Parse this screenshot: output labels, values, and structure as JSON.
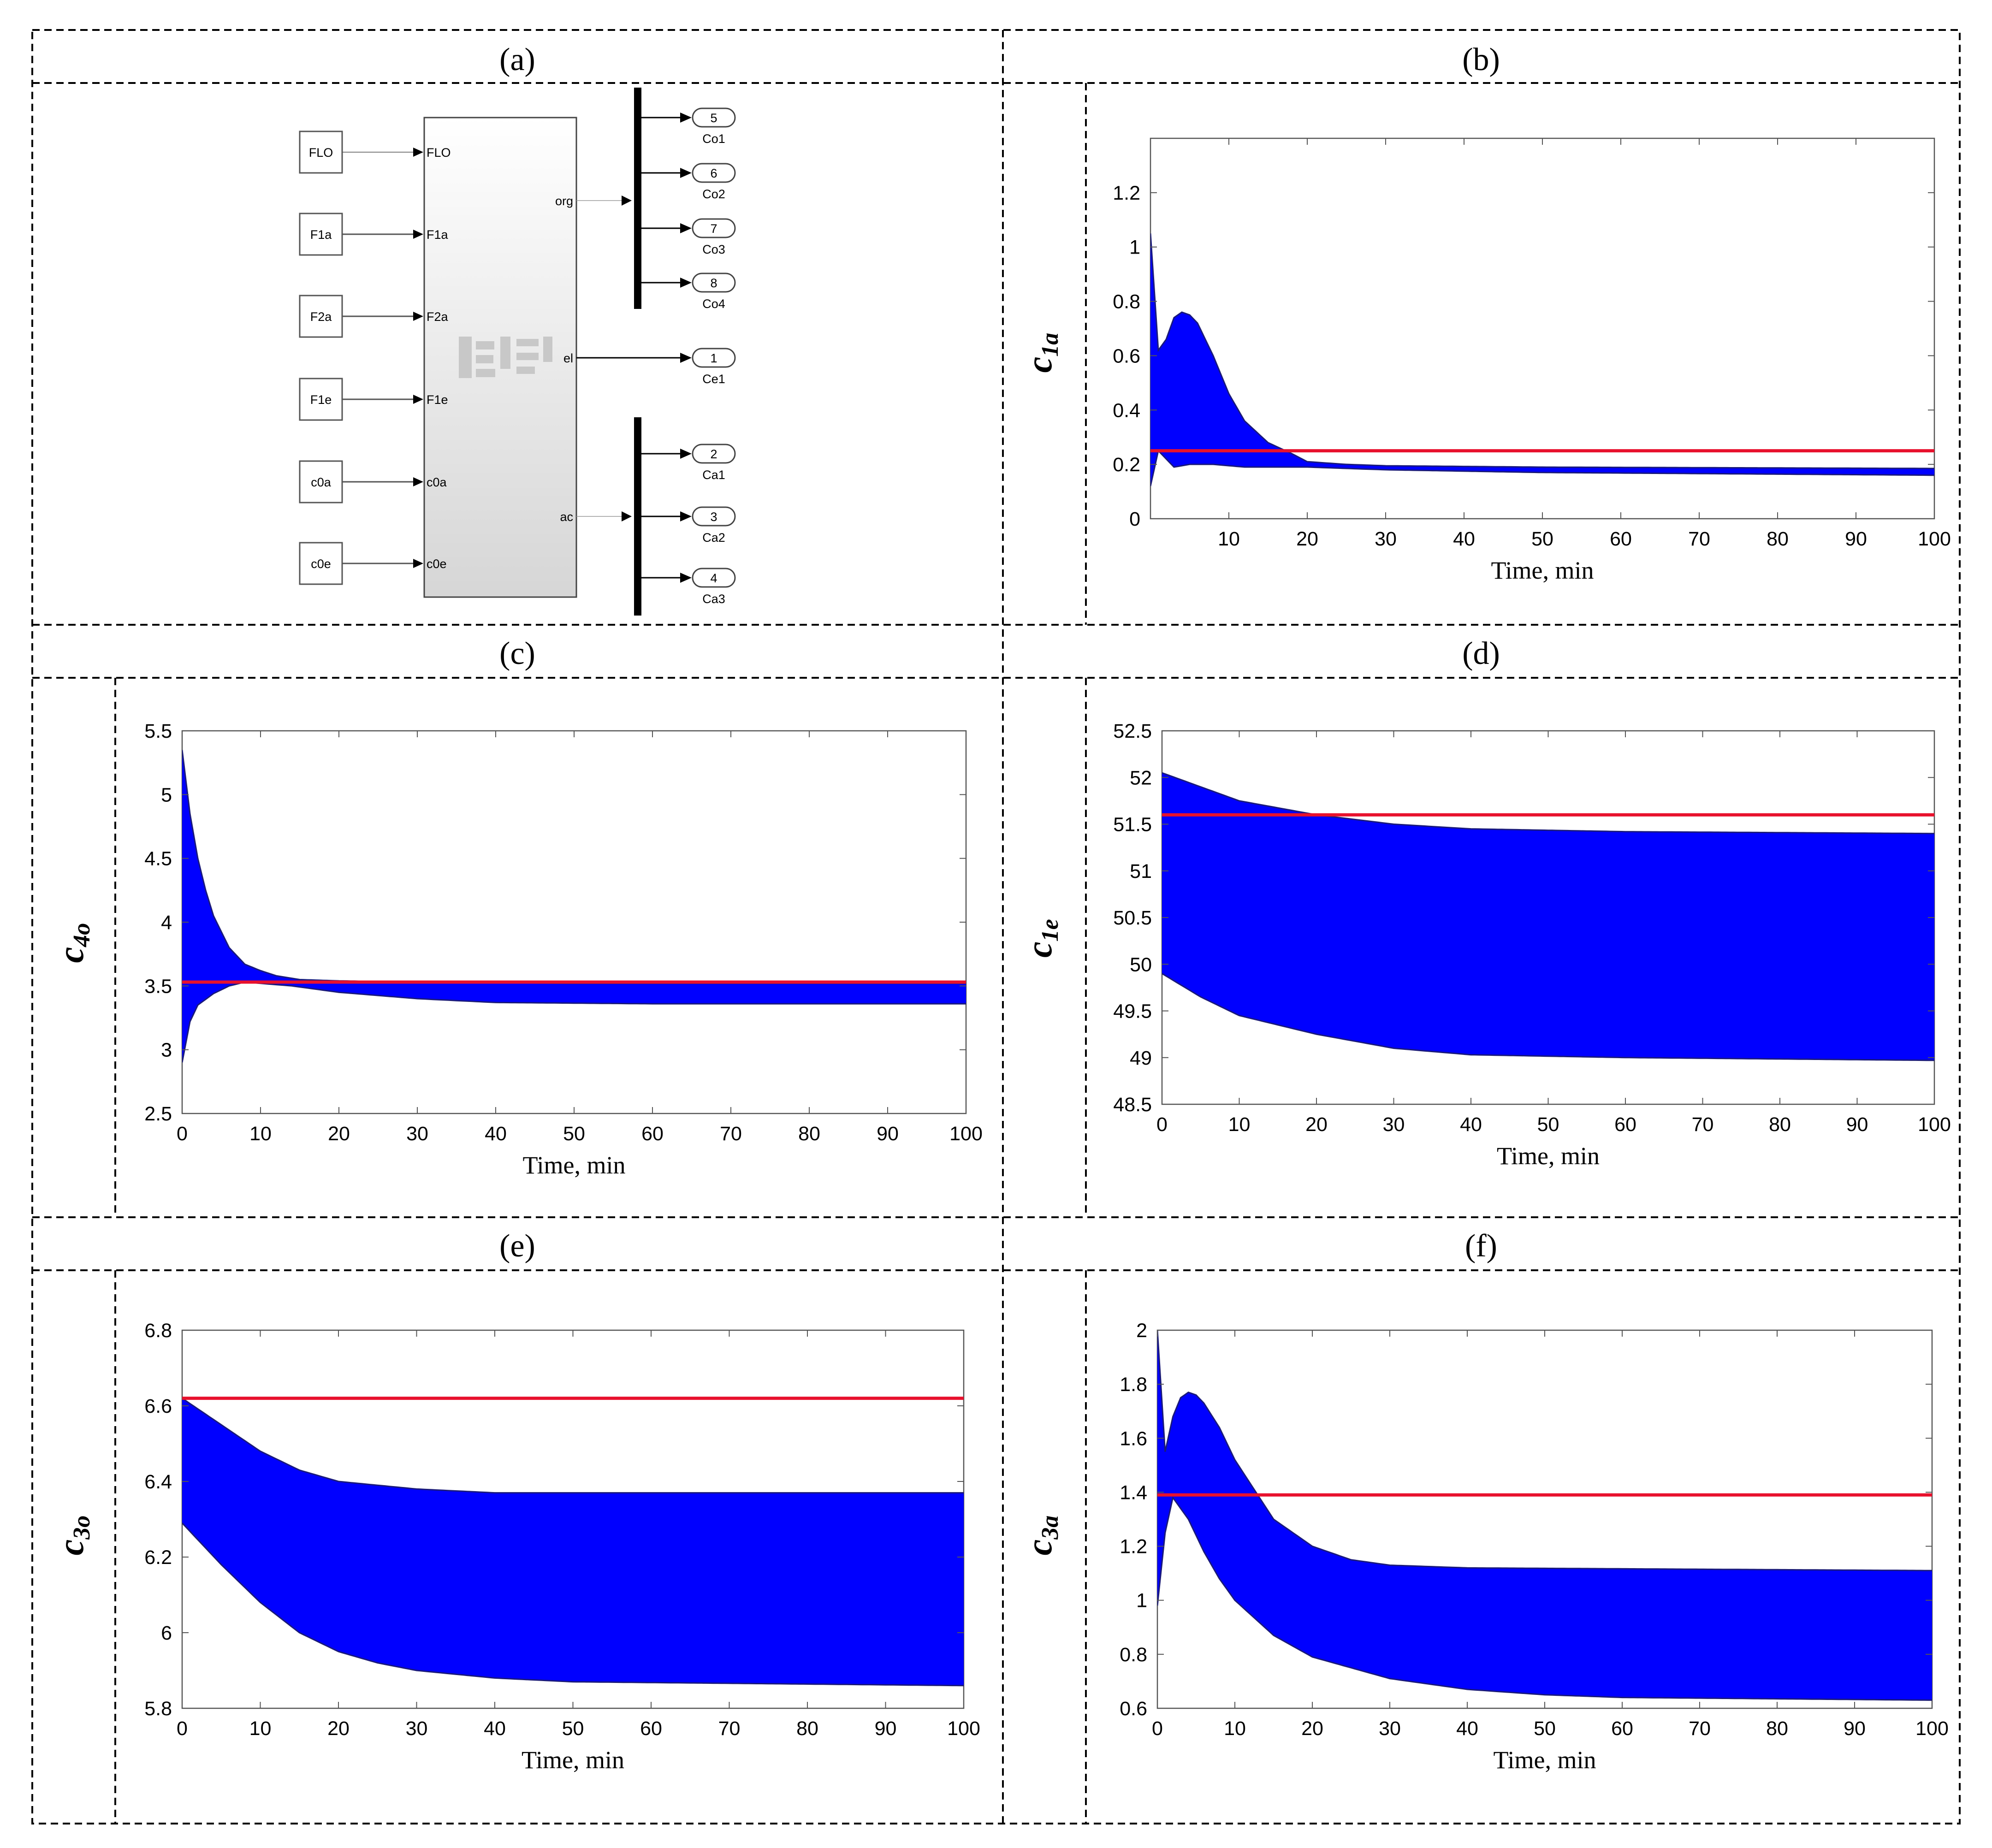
{
  "panels": {
    "a": {
      "label": "(a)"
    },
    "b": {
      "label": "(b)"
    },
    "c": {
      "label": "(c)"
    },
    "d": {
      "label": "(d)"
    },
    "e": {
      "label": "(e)"
    },
    "f": {
      "label": "(f)"
    }
  },
  "simulink": {
    "inputs": [
      "FLO",
      "F1a",
      "F2a",
      "F1e",
      "c0a",
      "c0e"
    ],
    "main_block_ports_in": [
      "FLO",
      "F1a",
      "F2a",
      "F1e",
      "c0a",
      "c0e"
    ],
    "main_block_ports_out": [
      "org",
      "el",
      "ac"
    ],
    "org_outputs": [
      {
        "num": "5",
        "name": "Co1"
      },
      {
        "num": "6",
        "name": "Co2"
      },
      {
        "num": "7",
        "name": "Co3"
      },
      {
        "num": "8",
        "name": "Co4"
      }
    ],
    "el_outputs": [
      {
        "num": "1",
        "name": "Ce1"
      }
    ],
    "ac_outputs": [
      {
        "num": "2",
        "name": "Ca1"
      },
      {
        "num": "3",
        "name": "Ca2"
      },
      {
        "num": "4",
        "name": "Ca3"
      }
    ]
  },
  "colors": {
    "ensemble": "#0000ff",
    "ensemble_edge": "#1a1a7a",
    "reference": "#e8112d"
  },
  "chart_data": [
    {
      "id": "b",
      "type": "line",
      "title": "",
      "xlabel": "Time, min",
      "ylabel": "c",
      "ylabel_sub": "1a",
      "xlim": [
        0,
        100
      ],
      "ylim": [
        0,
        1.4
      ],
      "xticks": [
        10,
        20,
        30,
        40,
        50,
        60,
        70,
        80,
        90,
        100
      ],
      "yticks": [
        0,
        0.2,
        0.4,
        0.6,
        0.8,
        1,
        1.2
      ],
      "xtick_labels": [
        "10",
        "20",
        "30",
        "40",
        "50",
        "60",
        "70",
        "80",
        "90",
        "100"
      ],
      "ytick_labels": [
        "0",
        "0.2",
        "0.4",
        "0.6",
        "0.8",
        "1",
        "1.2"
      ],
      "reference_value": 0.25,
      "band_upper": [
        [
          0,
          1.05
        ],
        [
          1,
          0.62
        ],
        [
          2,
          0.66
        ],
        [
          3,
          0.74
        ],
        [
          4,
          0.76
        ],
        [
          5,
          0.75
        ],
        [
          6,
          0.72
        ],
        [
          8,
          0.6
        ],
        [
          10,
          0.46
        ],
        [
          12,
          0.36
        ],
        [
          15,
          0.28
        ],
        [
          18,
          0.24
        ],
        [
          20,
          0.21
        ],
        [
          25,
          0.2
        ],
        [
          30,
          0.195
        ],
        [
          50,
          0.19
        ],
        [
          100,
          0.185
        ]
      ],
      "band_lower": [
        [
          0,
          0.12
        ],
        [
          1,
          0.25
        ],
        [
          2,
          0.22
        ],
        [
          3,
          0.19
        ],
        [
          5,
          0.2
        ],
        [
          8,
          0.2
        ],
        [
          12,
          0.19
        ],
        [
          20,
          0.19
        ],
        [
          30,
          0.18
        ],
        [
          50,
          0.17
        ],
        [
          100,
          0.16
        ]
      ]
    },
    {
      "id": "c",
      "type": "line",
      "title": "",
      "xlabel": "Time, min",
      "ylabel": "c",
      "ylabel_sub": "4o",
      "xlim": [
        0,
        100
      ],
      "ylim": [
        2.5,
        5.5
      ],
      "xticks": [
        0,
        10,
        20,
        30,
        40,
        50,
        60,
        70,
        80,
        90,
        100
      ],
      "yticks": [
        2.5,
        3,
        3.5,
        4,
        4.5,
        5,
        5.5
      ],
      "xtick_labels": [
        "0",
        "10",
        "20",
        "30",
        "40",
        "50",
        "60",
        "70",
        "80",
        "90",
        "100"
      ],
      "ytick_labels": [
        "2.5",
        "3",
        "3.5",
        "4",
        "4.5",
        "5",
        "5.5"
      ],
      "reference_value": 3.53,
      "band_upper": [
        [
          0,
          5.35
        ],
        [
          1,
          4.85
        ],
        [
          2,
          4.5
        ],
        [
          3,
          4.25
        ],
        [
          4,
          4.05
        ],
        [
          6,
          3.8
        ],
        [
          8,
          3.67
        ],
        [
          10,
          3.62
        ],
        [
          12,
          3.58
        ],
        [
          15,
          3.55
        ],
        [
          20,
          3.54
        ],
        [
          30,
          3.53
        ],
        [
          50,
          3.52
        ],
        [
          100,
          3.52
        ]
      ],
      "band_lower": [
        [
          0,
          2.9
        ],
        [
          1,
          3.22
        ],
        [
          2,
          3.35
        ],
        [
          4,
          3.44
        ],
        [
          6,
          3.5
        ],
        [
          8,
          3.53
        ],
        [
          10,
          3.52
        ],
        [
          14,
          3.5
        ],
        [
          20,
          3.45
        ],
        [
          30,
          3.4
        ],
        [
          40,
          3.37
        ],
        [
          60,
          3.36
        ],
        [
          100,
          3.36
        ]
      ]
    },
    {
      "id": "d",
      "type": "line",
      "title": "",
      "xlabel": "Time, min",
      "ylabel": "c",
      "ylabel_sub": "1e",
      "xlim": [
        0,
        100
      ],
      "ylim": [
        48.5,
        52.5
      ],
      "xticks": [
        0,
        10,
        20,
        30,
        40,
        50,
        60,
        70,
        80,
        90,
        100
      ],
      "yticks": [
        48.5,
        49,
        49.5,
        50,
        50.5,
        51,
        51.5,
        52,
        52.5
      ],
      "xtick_labels": [
        "0",
        "10",
        "20",
        "30",
        "40",
        "50",
        "60",
        "70",
        "80",
        "90",
        "100"
      ],
      "ytick_labels": [
        "48.5",
        "49",
        "49.5",
        "50",
        "50.5",
        "51",
        "51.5",
        "52",
        "52.5"
      ],
      "reference_value": 51.6,
      "band_upper": [
        [
          0,
          52.05
        ],
        [
          5,
          51.9
        ],
        [
          10,
          51.75
        ],
        [
          20,
          51.6
        ],
        [
          30,
          51.5
        ],
        [
          40,
          51.45
        ],
        [
          60,
          51.42
        ],
        [
          100,
          51.4
        ]
      ],
      "band_lower": [
        [
          0,
          49.9
        ],
        [
          5,
          49.65
        ],
        [
          10,
          49.45
        ],
        [
          20,
          49.25
        ],
        [
          30,
          49.1
        ],
        [
          40,
          49.03
        ],
        [
          60,
          49.0
        ],
        [
          100,
          48.97
        ]
      ]
    },
    {
      "id": "e",
      "type": "line",
      "title": "",
      "xlabel": "Time, min",
      "ylabel": "c",
      "ylabel_sub": "3o",
      "xlim": [
        0,
        100
      ],
      "ylim": [
        5.8,
        6.8
      ],
      "xticks": [
        0,
        10,
        20,
        30,
        40,
        50,
        60,
        70,
        80,
        90,
        100
      ],
      "yticks": [
        5.8,
        6,
        6.2,
        6.4,
        6.6,
        6.8
      ],
      "xtick_labels": [
        "0",
        "10",
        "20",
        "30",
        "40",
        "50",
        "60",
        "70",
        "80",
        "90",
        "100"
      ],
      "ytick_labels": [
        "5.8",
        "6",
        "6.2",
        "6.4",
        "6.6",
        "6.8"
      ],
      "reference_value": 6.62,
      "band_upper": [
        [
          0,
          6.62
        ],
        [
          5,
          6.55
        ],
        [
          10,
          6.48
        ],
        [
          15,
          6.43
        ],
        [
          20,
          6.4
        ],
        [
          30,
          6.38
        ],
        [
          40,
          6.37
        ],
        [
          100,
          6.37
        ]
      ],
      "band_lower": [
        [
          0,
          6.29
        ],
        [
          5,
          6.18
        ],
        [
          10,
          6.08
        ],
        [
          15,
          6.0
        ],
        [
          20,
          5.95
        ],
        [
          25,
          5.92
        ],
        [
          30,
          5.9
        ],
        [
          40,
          5.88
        ],
        [
          50,
          5.87
        ],
        [
          100,
          5.86
        ]
      ]
    },
    {
      "id": "f",
      "type": "line",
      "title": "",
      "xlabel": "Time, min",
      "ylabel": "c",
      "ylabel_sub": "3a",
      "xlim": [
        0,
        100
      ],
      "ylim": [
        0.6,
        2
      ],
      "xticks": [
        0,
        10,
        20,
        30,
        40,
        50,
        60,
        70,
        80,
        90,
        100
      ],
      "yticks": [
        0.6,
        0.8,
        1,
        1.2,
        1.4,
        1.6,
        1.8,
        2
      ],
      "xtick_labels": [
        "0",
        "10",
        "20",
        "30",
        "40",
        "50",
        "60",
        "70",
        "80",
        "90",
        "100"
      ],
      "ytick_labels": [
        "0.6",
        "0.8",
        "1",
        "1.2",
        "1.4",
        "1.6",
        "1.8",
        "2"
      ],
      "reference_value": 1.39,
      "band_upper": [
        [
          0,
          2.0
        ],
        [
          1,
          1.55
        ],
        [
          2,
          1.68
        ],
        [
          3,
          1.75
        ],
        [
          4,
          1.77
        ],
        [
          5,
          1.76
        ],
        [
          6,
          1.73
        ],
        [
          8,
          1.64
        ],
        [
          10,
          1.52
        ],
        [
          15,
          1.3
        ],
        [
          20,
          1.2
        ],
        [
          25,
          1.15
        ],
        [
          30,
          1.13
        ],
        [
          40,
          1.12
        ],
        [
          100,
          1.11
        ]
      ],
      "band_lower": [
        [
          0,
          0.98
        ],
        [
          1,
          1.25
        ],
        [
          2,
          1.38
        ],
        [
          4,
          1.3
        ],
        [
          6,
          1.18
        ],
        [
          8,
          1.08
        ],
        [
          10,
          1.0
        ],
        [
          15,
          0.87
        ],
        [
          20,
          0.79
        ],
        [
          30,
          0.71
        ],
        [
          40,
          0.67
        ],
        [
          50,
          0.65
        ],
        [
          60,
          0.64
        ],
        [
          100,
          0.63
        ]
      ]
    }
  ]
}
